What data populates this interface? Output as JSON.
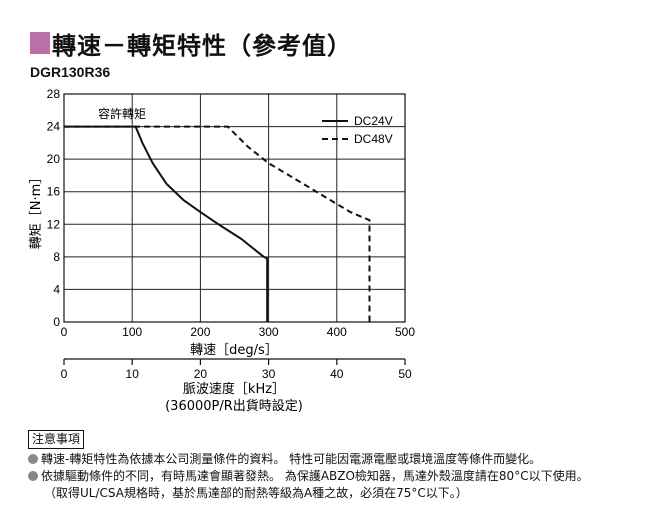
{
  "title": "轉速－轉矩特性（參考值）",
  "model": "DGR130R36",
  "accent_color": "#b96fa8",
  "notes": {
    "heading": "注意事項",
    "items": [
      "轉速-轉矩特性為依據本公司測量條件的資料。 特性可能因電源電壓或環境溫度等條件而變化。",
      "依據驅動條件的不同，有時馬達會顯著發熱。 為保護ABZO檢知器，馬達外殼溫度請在80°C以下使用。"
    ],
    "continuation": "（取得UL/CSA規格時，基於馬達部的耐熱等級為A種之故，必須在75°C以下。）"
  },
  "chart_data": {
    "type": "line",
    "title": "",
    "xlabel": "轉速［deg/s］",
    "ylabel": "轉矩［N·m］",
    "xlim": [
      0,
      500
    ],
    "ylim": [
      0,
      28
    ],
    "x_ticks": [
      0,
      100,
      200,
      300,
      400,
      500
    ],
    "y_ticks": [
      0,
      4,
      8,
      12,
      16,
      20,
      24,
      28
    ],
    "grid": true,
    "legend_position": "top-right",
    "annotation": "容許轉矩",
    "secondary_x_axis": {
      "label_line1": "脈波速度［kHz］",
      "label_line2": "(36000P/R出貨時設定)",
      "ticks": [
        0,
        10,
        20,
        30,
        40,
        50
      ],
      "range": [
        0,
        50
      ]
    },
    "series": [
      {
        "name": "DC24V",
        "style": "solid",
        "x": [
          0,
          105,
          115,
          130,
          150,
          175,
          200,
          230,
          260,
          293,
          298,
          298
        ],
        "y": [
          24,
          24,
          22,
          19.5,
          17,
          15,
          13.5,
          11.8,
          10.2,
          8,
          7.8,
          0
        ]
      },
      {
        "name": "DC48V",
        "style": "dashed",
        "x": [
          0,
          240,
          270,
          300,
          330,
          360,
          390,
          420,
          448,
          448
        ],
        "y": [
          24,
          24,
          21.5,
          19.5,
          18,
          16.5,
          15,
          13.5,
          12.5,
          0
        ]
      }
    ]
  }
}
